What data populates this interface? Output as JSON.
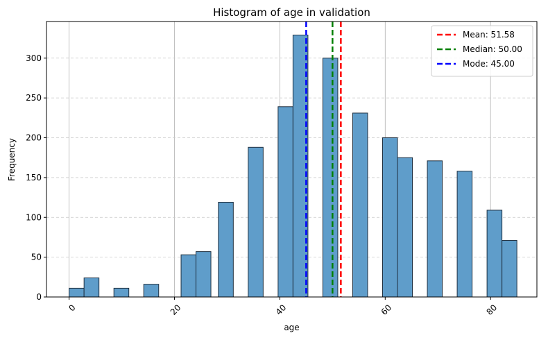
{
  "chart_data": {
    "type": "bar",
    "title": "Histogram of age in validation",
    "xlabel": "age",
    "ylabel": "Frequency",
    "xlim": [
      -4.3,
      88.8
    ],
    "ylim": [
      0,
      346
    ],
    "bin_width": 2.833,
    "bins": [
      {
        "x": 0.0,
        "value": 11
      },
      {
        "x": 2.833,
        "value": 24
      },
      {
        "x": 8.5,
        "value": 11
      },
      {
        "x": 14.167,
        "value": 16
      },
      {
        "x": 21.25,
        "value": 53
      },
      {
        "x": 24.083,
        "value": 57
      },
      {
        "x": 28.333,
        "value": 119
      },
      {
        "x": 34.0,
        "value": 188
      },
      {
        "x": 39.667,
        "value": 239
      },
      {
        "x": 42.5,
        "value": 329
      },
      {
        "x": 48.167,
        "value": 300
      },
      {
        "x": 53.833,
        "value": 231
      },
      {
        "x": 59.5,
        "value": 200
      },
      {
        "x": 62.333,
        "value": 175
      },
      {
        "x": 68.0,
        "value": 171
      },
      {
        "x": 73.667,
        "value": 158
      },
      {
        "x": 79.333,
        "value": 109
      },
      {
        "x": 82.167,
        "value": 71
      }
    ],
    "bar_color": "#5f9dca",
    "bar_edge_color": "#1f2f3f",
    "x_ticks": [
      0,
      20,
      40,
      60,
      80
    ],
    "y_ticks": [
      0,
      50,
      100,
      150,
      200,
      250,
      300
    ],
    "x_grid": "solid",
    "y_grid": "dashed",
    "lines": [
      {
        "label": "Mean: 51.58",
        "x": 51.58,
        "color": "#ff0000"
      },
      {
        "label": "Median: 50.00",
        "x": 50.0,
        "color": "#008000"
      },
      {
        "label": "Mode: 45.00",
        "x": 45.0,
        "color": "#0000ff"
      }
    ],
    "legend_position": "top-right"
  }
}
